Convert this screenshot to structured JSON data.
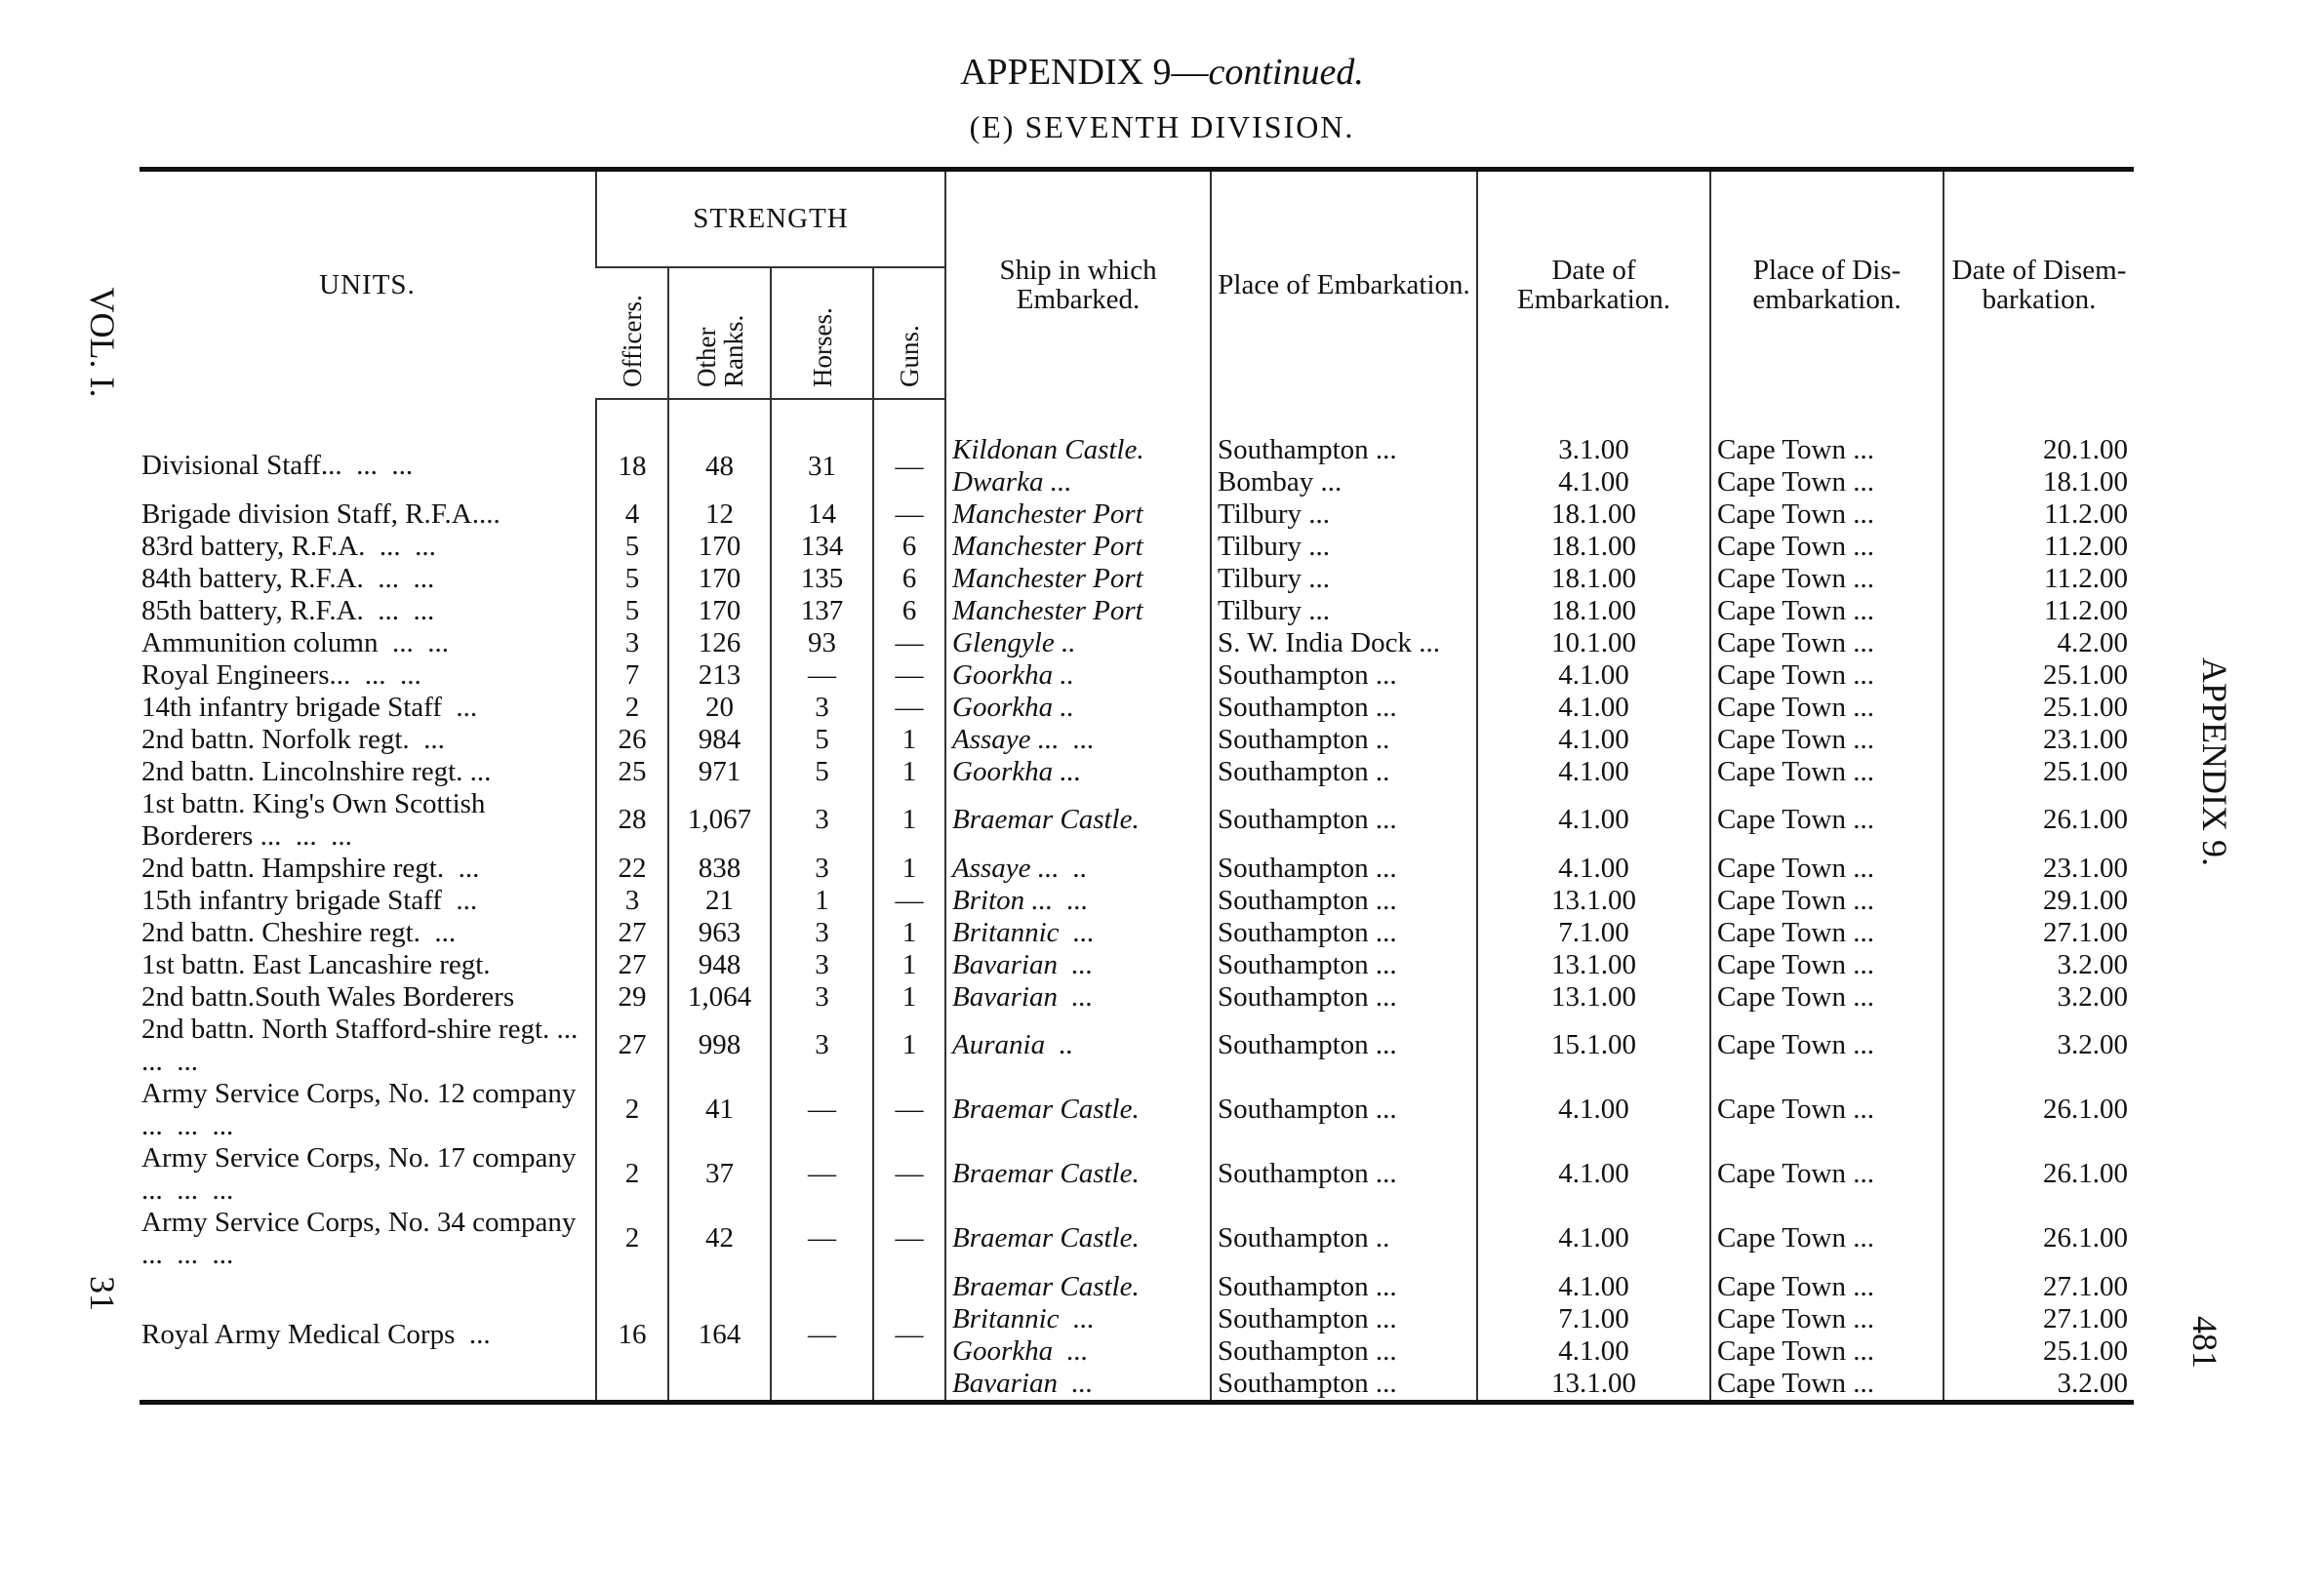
{
  "margins": {
    "left_top": "VOL. I.",
    "left_bottom": "31",
    "right_top": "APPENDIX 9.",
    "right_bottom": "481"
  },
  "header": {
    "title": "APPENDIX 9—",
    "title_italic": "continued.",
    "subtitle": "(E) SEVENTH DIVISION."
  },
  "table": {
    "columns": {
      "units": "UNITS.",
      "strength": "STRENGTH",
      "officers": "Officers.",
      "other_ranks": "Other Ranks.",
      "horses": "Horses.",
      "guns": "Guns.",
      "ship": "Ship in which Embarked.",
      "embarked_at": "Place of Embarkation.",
      "embarked_on": "Date of Embarkation.",
      "disembarked_at": "Place of Dis-embarkation.",
      "disembarked_on": "Date of Disem-barkation."
    },
    "rows": [
      {
        "unit": "Divisional Staff...  ...  ...",
        "officers": "18",
        "other_ranks": "48",
        "horses": "31",
        "guns": "—",
        "voyages": [
          {
            "ship": "Kildonan Castle.",
            "embarked_at": "Southampton ...",
            "embarked_on": "3.1.00",
            "disembarked_at": "Cape Town ...",
            "disembarked_on": "20.1.00"
          },
          {
            "ship": "Dwarka ...",
            "embarked_at": "Bombay ...",
            "embarked_on": "4.1.00",
            "disembarked_at": "Cape Town ...",
            "disembarked_on": "18.1.00"
          }
        ]
      },
      {
        "unit": "Brigade division Staff, R.F.A....",
        "officers": "4",
        "other_ranks": "12",
        "horses": "14",
        "guns": "—",
        "voyages": [
          {
            "ship": "Manchester Port",
            "embarked_at": "Tilbury ...",
            "embarked_on": "18.1.00",
            "disembarked_at": "Cape Town ...",
            "disembarked_on": "11.2.00"
          }
        ]
      },
      {
        "unit": "83rd battery, R.F.A.  ...  ...",
        "officers": "5",
        "other_ranks": "170",
        "horses": "134",
        "guns": "6",
        "voyages": [
          {
            "ship": "Manchester Port",
            "embarked_at": "Tilbury ...",
            "embarked_on": "18.1.00",
            "disembarked_at": "Cape Town ...",
            "disembarked_on": "11.2.00"
          }
        ]
      },
      {
        "unit": "84th battery, R.F.A.  ...  ...",
        "officers": "5",
        "other_ranks": "170",
        "horses": "135",
        "guns": "6",
        "voyages": [
          {
            "ship": "Manchester Port",
            "embarked_at": "Tilbury ...",
            "embarked_on": "18.1.00",
            "disembarked_at": "Cape Town ...",
            "disembarked_on": "11.2.00"
          }
        ]
      },
      {
        "unit": "85th battery, R.F.A.  ...  ...",
        "officers": "5",
        "other_ranks": "170",
        "horses": "137",
        "guns": "6",
        "voyages": [
          {
            "ship": "Manchester Port",
            "embarked_at": "Tilbury ...",
            "embarked_on": "18.1.00",
            "disembarked_at": "Cape Town ...",
            "disembarked_on": "11.2.00"
          }
        ]
      },
      {
        "unit": "Ammunition column  ...  ...",
        "officers": "3",
        "other_ranks": "126",
        "horses": "93",
        "guns": "—",
        "voyages": [
          {
            "ship": "Glengyle ..",
            "embarked_at": "S. W. India Dock ...",
            "embarked_on": "10.1.00",
            "disembarked_at": "Cape Town ...",
            "disembarked_on": "4.2.00"
          }
        ]
      },
      {
        "unit": "Royal Engineers...  ...  ...",
        "officers": "7",
        "other_ranks": "213",
        "horses": "—",
        "guns": "—",
        "voyages": [
          {
            "ship": "Goorkha ..",
            "embarked_at": "Southampton ...",
            "embarked_on": "4.1.00",
            "disembarked_at": "Cape Town ...",
            "disembarked_on": "25.1.00"
          }
        ]
      },
      {
        "unit": "14th infantry brigade Staff  ...",
        "officers": "2",
        "other_ranks": "20",
        "horses": "3",
        "guns": "—",
        "voyages": [
          {
            "ship": "Goorkha ..",
            "embarked_at": "Southampton ...",
            "embarked_on": "4.1.00",
            "disembarked_at": "Cape Town ...",
            "disembarked_on": "25.1.00"
          }
        ]
      },
      {
        "unit": "2nd battn. Norfolk regt.  ...",
        "officers": "26",
        "other_ranks": "984",
        "horses": "5",
        "guns": "1",
        "voyages": [
          {
            "ship": "Assaye ...  ...",
            "embarked_at": "Southampton ..",
            "embarked_on": "4.1.00",
            "disembarked_at": "Cape Town ...",
            "disembarked_on": "23.1.00"
          }
        ]
      },
      {
        "unit": "2nd battn. Lincolnshire regt. ...",
        "officers": "25",
        "other_ranks": "971",
        "horses": "5",
        "guns": "1",
        "voyages": [
          {
            "ship": "Goorkha ...",
            "embarked_at": "Southampton ..",
            "embarked_on": "4.1.00",
            "disembarked_at": "Cape Town ...",
            "disembarked_on": "25.1.00"
          }
        ]
      },
      {
        "unit": "1st battn. King's Own Scottish Borderers ...  ...  ...",
        "officers": "28",
        "other_ranks": "1,067",
        "horses": "3",
        "guns": "1",
        "voyages": [
          {
            "ship": "Braemar Castle.",
            "embarked_at": "Southampton ...",
            "embarked_on": "4.1.00",
            "disembarked_at": "Cape Town ...",
            "disembarked_on": "26.1.00"
          }
        ]
      },
      {
        "unit": "2nd battn. Hampshire regt.  ...",
        "officers": "22",
        "other_ranks": "838",
        "horses": "3",
        "guns": "1",
        "voyages": [
          {
            "ship": "Assaye ...  ..",
            "embarked_at": "Southampton ...",
            "embarked_on": "4.1.00",
            "disembarked_at": "Cape Town ...",
            "disembarked_on": "23.1.00"
          }
        ]
      },
      {
        "unit": "15th infantry brigade Staff  ...",
        "officers": "3",
        "other_ranks": "21",
        "horses": "1",
        "guns": "—",
        "voyages": [
          {
            "ship": "Briton ...  ...",
            "embarked_at": "Southampton ...",
            "embarked_on": "13.1.00",
            "disembarked_at": "Cape Town ...",
            "disembarked_on": "29.1.00"
          }
        ]
      },
      {
        "unit": "2nd battn. Cheshire regt.  ...",
        "officers": "27",
        "other_ranks": "963",
        "horses": "3",
        "guns": "1",
        "voyages": [
          {
            "ship": "Britannic  ...",
            "embarked_at": "Southampton ...",
            "embarked_on": "7.1.00",
            "disembarked_at": "Cape Town ...",
            "disembarked_on": "27.1.00"
          }
        ]
      },
      {
        "unit": "1st battn. East Lancashire regt.",
        "officers": "27",
        "other_ranks": "948",
        "horses": "3",
        "guns": "1",
        "voyages": [
          {
            "ship": "Bavarian  ...",
            "embarked_at": "Southampton ...",
            "embarked_on": "13.1.00",
            "disembarked_at": "Cape Town ...",
            "disembarked_on": "3.2.00"
          }
        ]
      },
      {
        "unit": "2nd battn.South Wales Borderers",
        "officers": "29",
        "other_ranks": "1,064",
        "horses": "3",
        "guns": "1",
        "voyages": [
          {
            "ship": "Bavarian  ...",
            "embarked_at": "Southampton ...",
            "embarked_on": "13.1.00",
            "disembarked_at": "Cape Town ...",
            "disembarked_on": "3.2.00"
          }
        ]
      },
      {
        "unit": "2nd battn. North Stafford-shire regt. ...  ...  ...",
        "officers": "27",
        "other_ranks": "998",
        "horses": "3",
        "guns": "1",
        "voyages": [
          {
            "ship": "Aurania  ..",
            "embarked_at": "Southampton ...",
            "embarked_on": "15.1.00",
            "disembarked_at": "Cape Town ...",
            "disembarked_on": "3.2.00"
          }
        ]
      },
      {
        "unit": "Army Service Corps, No. 12 company  ...  ...  ...",
        "officers": "2",
        "other_ranks": "41",
        "horses": "—",
        "guns": "—",
        "voyages": [
          {
            "ship": "Braemar Castle.",
            "embarked_at": "Southampton ...",
            "embarked_on": "4.1.00",
            "disembarked_at": "Cape Town ...",
            "disembarked_on": "26.1.00"
          }
        ]
      },
      {
        "unit": "Army Service Corps, No. 17 company  ...  ...  ...",
        "officers": "2",
        "other_ranks": "37",
        "horses": "—",
        "guns": "—",
        "voyages": [
          {
            "ship": "Braemar Castle.",
            "embarked_at": "Southampton ...",
            "embarked_on": "4.1.00",
            "disembarked_at": "Cape Town ...",
            "disembarked_on": "26.1.00"
          }
        ]
      },
      {
        "unit": "Army Service Corps, No. 34 company  ...  ...  ...",
        "officers": "2",
        "other_ranks": "42",
        "horses": "—",
        "guns": "—",
        "voyages": [
          {
            "ship": "Braemar Castle.",
            "embarked_at": "Southampton ..",
            "embarked_on": "4.1.00",
            "disembarked_at": "Cape Town ...",
            "disembarked_on": "26.1.00"
          }
        ]
      },
      {
        "unit": "Royal Army Medical Corps  ...",
        "officers": "16",
        "other_ranks": "164",
        "horses": "—",
        "guns": "—",
        "voyages": [
          {
            "ship": "Braemar Castle.",
            "embarked_at": "Southampton ...",
            "embarked_on": "4.1.00",
            "disembarked_at": "Cape Town ...",
            "disembarked_on": "27.1.00"
          },
          {
            "ship": "Britannic  ...",
            "embarked_at": "Southampton ...",
            "embarked_on": "7.1.00",
            "disembarked_at": "Cape Town ...",
            "disembarked_on": "27.1.00"
          },
          {
            "ship": "Goorkha  ...",
            "embarked_at": "Southampton ...",
            "embarked_on": "4.1.00",
            "disembarked_at": "Cape Town ...",
            "disembarked_on": "25.1.00"
          },
          {
            "ship": "Bavarian  ...",
            "embarked_at": "Southampton ...",
            "embarked_on": "13.1.00",
            "disembarked_at": "Cape Town ...",
            "disembarked_on": "3.2.00"
          }
        ]
      }
    ]
  }
}
